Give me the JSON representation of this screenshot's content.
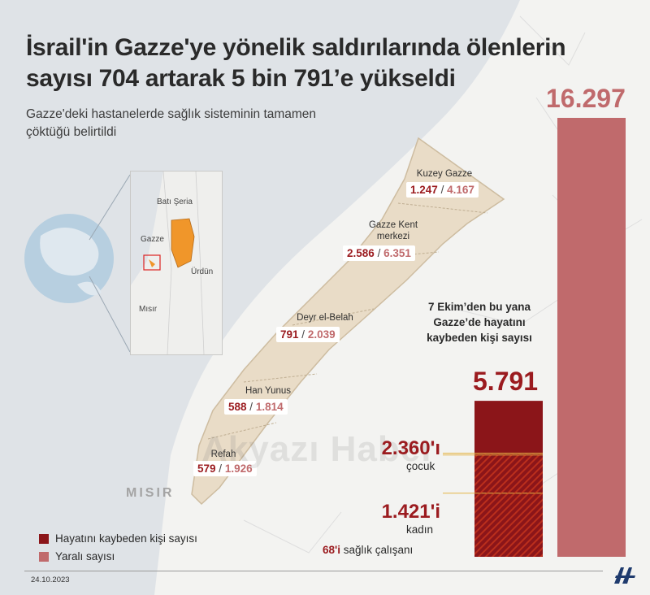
{
  "title": "İsrail'in Gazze'ye yönelik saldırılarında ölenlerin sayısı 704 artarak 5 bin 791’e yükseldi",
  "subtitle": "Gazze'deki hastanelerde sağlık sisteminin tamamen çöktüğü belirtildi",
  "inset_map": {
    "west_bank": "Batı Şeria",
    "gaza": "Gazze",
    "jordan": "Ürdün",
    "egypt": "Mısır"
  },
  "regions": [
    {
      "name": "Kuzey Gazze",
      "dead": "1.247",
      "wounded": "4.167"
    },
    {
      "name": "Gazze Kent merkezi",
      "dead": "2.586",
      "wounded": "6.351"
    },
    {
      "name": "Deyr el-Belah",
      "dead": "791",
      "wounded": "2.039"
    },
    {
      "name": "Han Yunus",
      "dead": "588",
      "wounded": "1.814"
    },
    {
      "name": "Refah",
      "dead": "579",
      "wounded": "1.926"
    }
  ],
  "separator": "/",
  "country_label": "MISIR",
  "bars": {
    "dead_total": "5.791",
    "wounded_total": "16.297",
    "dead_caption": "7 Ekim’den bu yana Gazze’de hayatını kaybeden kişi sayısı"
  },
  "breakdown": [
    {
      "value": "2.360'ı",
      "label": "çocuk"
    },
    {
      "value": "1.421'i",
      "label": "kadın"
    },
    {
      "value": "68'i",
      "label": "sağlık çalışanı"
    }
  ],
  "legend": [
    {
      "label": "Hayatını kaybeden kişi sayısı",
      "color": "#8b1519"
    },
    {
      "label": "Yaralı sayısı",
      "color": "#c06a6c"
    }
  ],
  "date": "24.10.2023",
  "watermark": "Akyazı Haber",
  "colors": {
    "dead": "#8b1519",
    "wounded": "#c06a6c",
    "strip": "#e9dcc7",
    "sea": "#dfe3e7",
    "west_bank": "#f0962a"
  },
  "chart_data": {
    "type": "bar",
    "categories": [
      "Hayatını kaybeden kişi sayısı",
      "Yaralı sayısı"
    ],
    "values": [
      5791,
      16297
    ],
    "stacked_breakdown_of_dead": {
      "çocuk": 2360,
      "kadın": 1421,
      "sağlık çalışanı": 68
    },
    "ylim": [
      0,
      16297
    ]
  }
}
